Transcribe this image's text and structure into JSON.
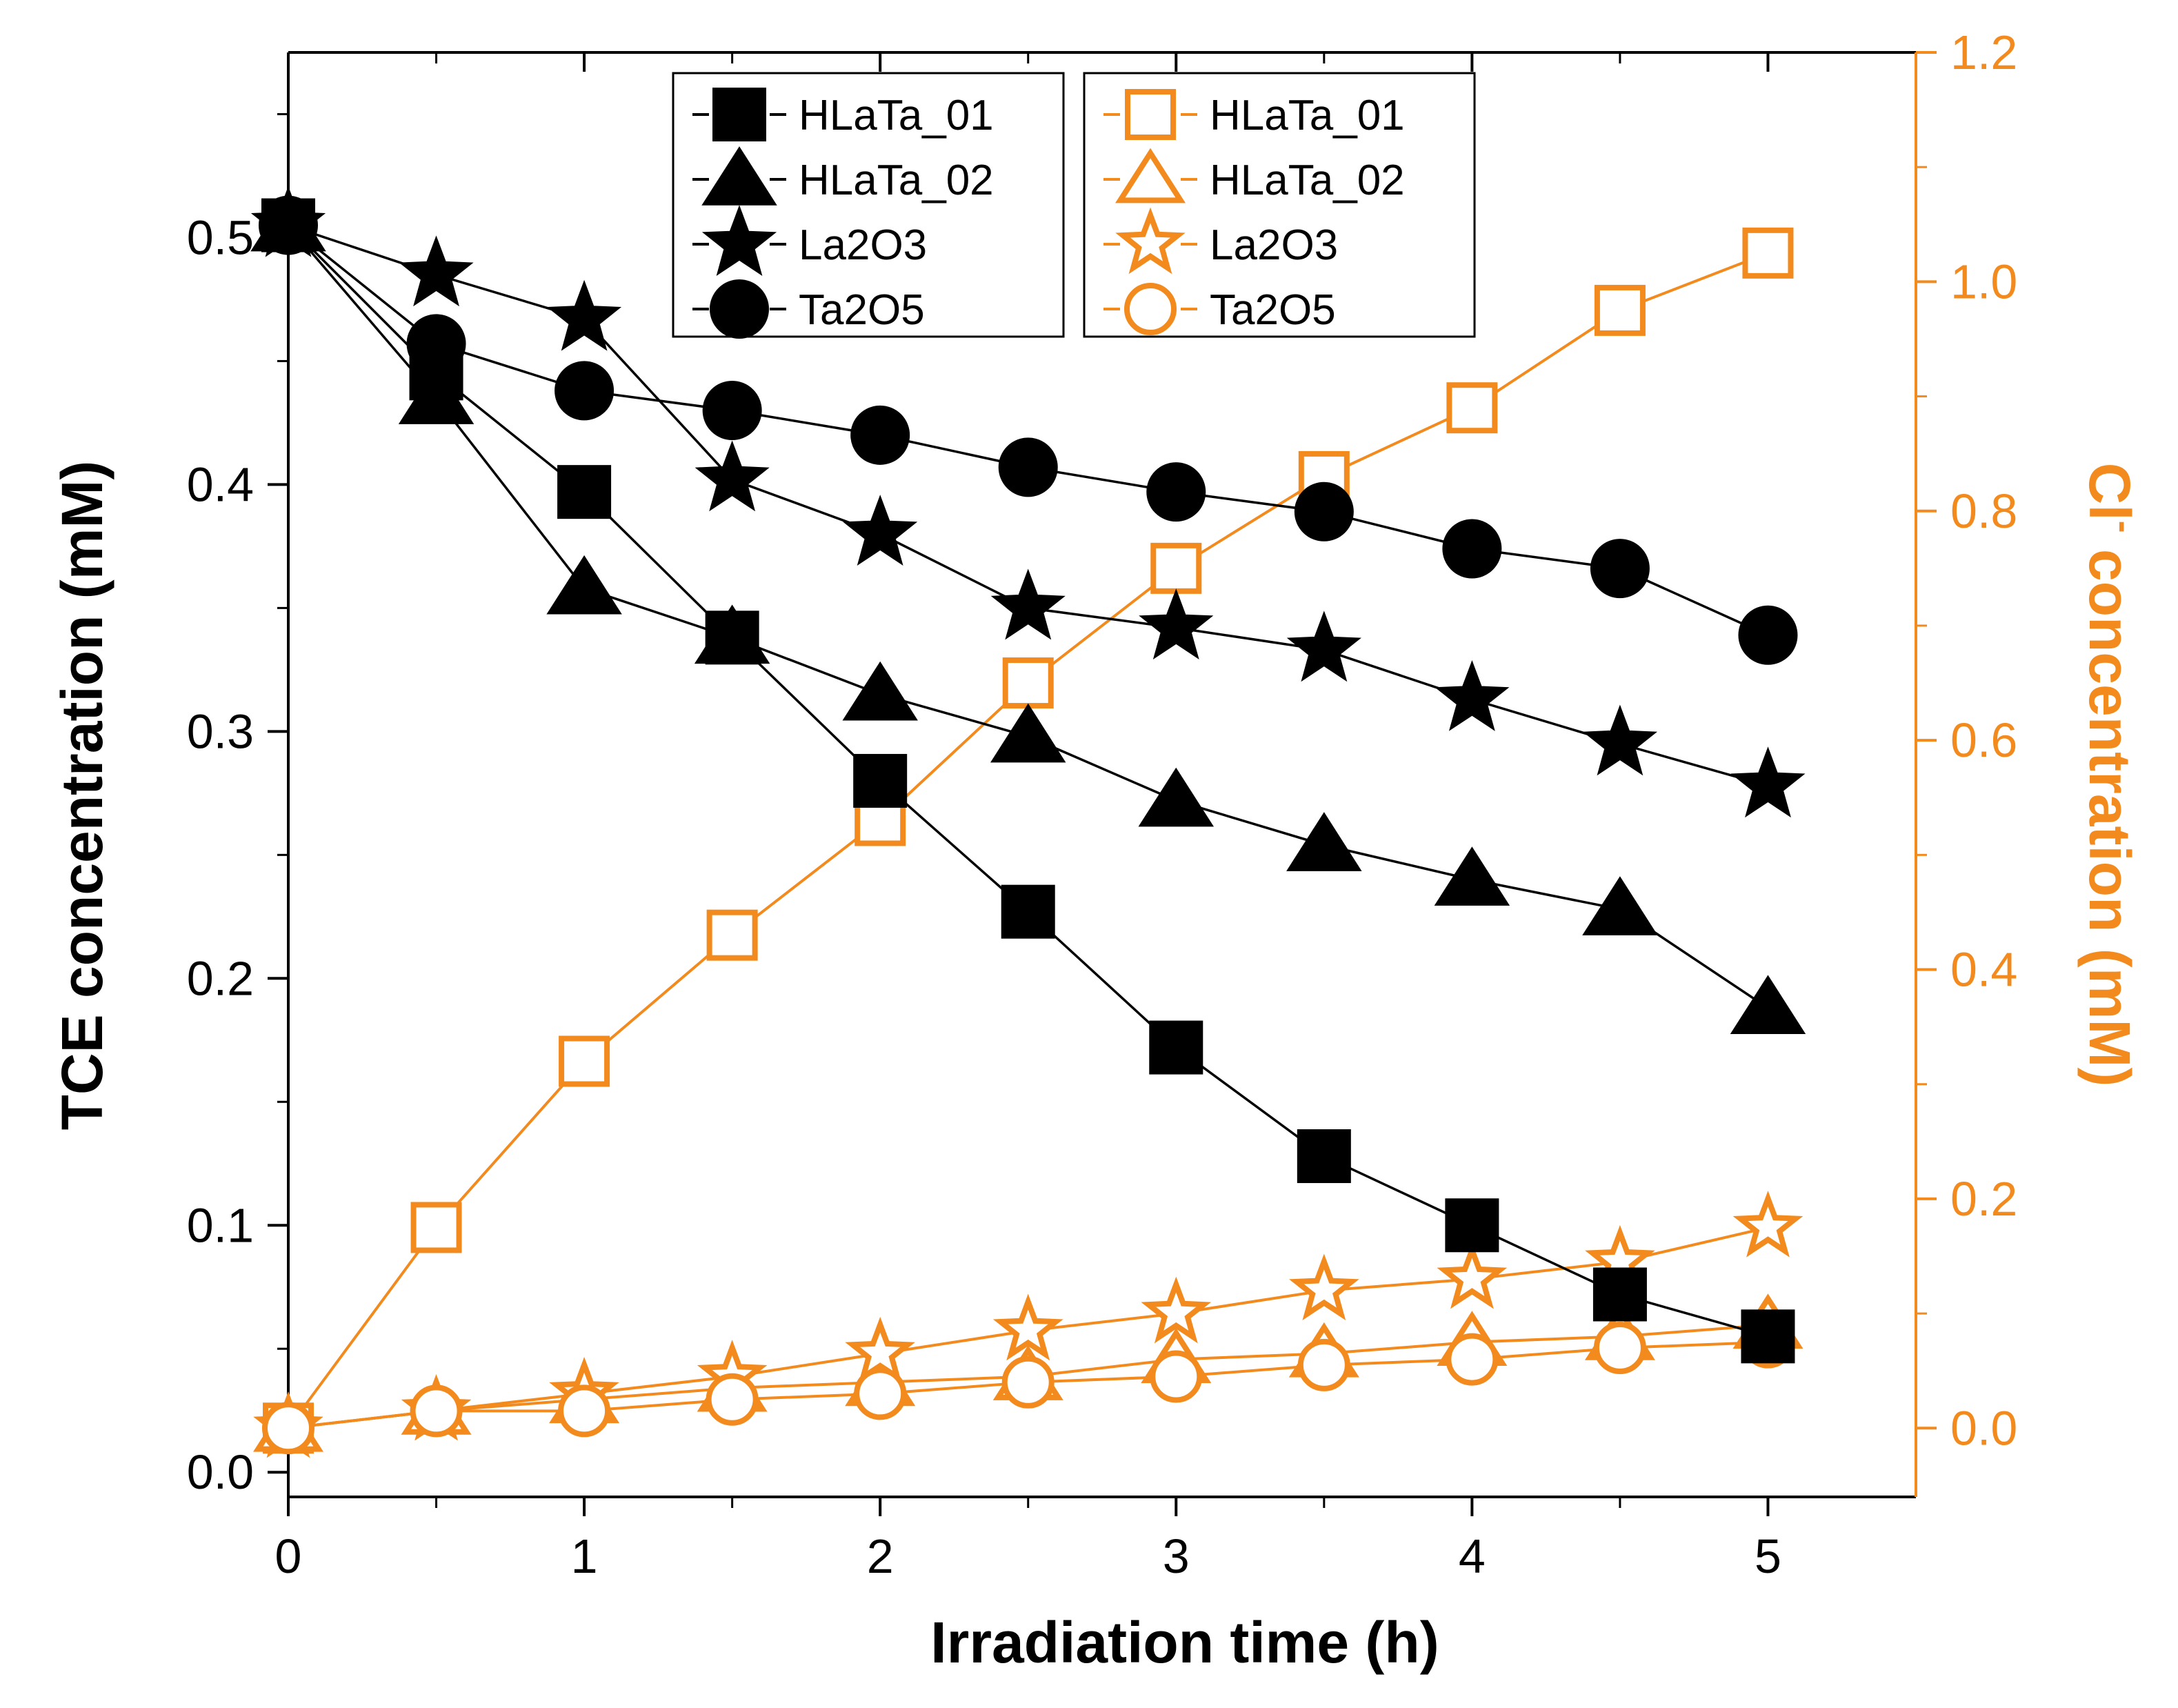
{
  "chart_data": {
    "type": "line",
    "x_axis": {
      "label": "Irradiation time (h)",
      "range": [
        0,
        5.5
      ],
      "ticks": [
        0,
        1,
        2,
        3,
        4,
        5
      ],
      "tick_labels": [
        "0",
        "1",
        "2",
        "3",
        "4",
        "5"
      ]
    },
    "y_axis_left": {
      "label": "TCE concentration (mM)",
      "range": [
        -0.01,
        0.575
      ],
      "ticks": [
        0.0,
        0.1,
        0.2,
        0.3,
        0.4,
        0.5
      ],
      "tick_labels": [
        "0.0",
        "0.1",
        "0.2",
        "0.3",
        "0.4",
        "0.5"
      ]
    },
    "y_axis_right": {
      "label_main": "Cl",
      "label_sup": "-",
      "label_rest": " concentration (mM)",
      "range": [
        -0.06,
        1.2
      ],
      "ticks": [
        0.0,
        0.2,
        0.4,
        0.6,
        0.8,
        1.0,
        1.2
      ],
      "tick_labels": [
        "0.0",
        "0.2",
        "0.4",
        "0.6",
        "0.8",
        "1.0",
        "1.2"
      ]
    },
    "x": [
      0,
      0.5,
      1,
      1.5,
      2,
      2.5,
      3,
      3.5,
      4,
      4.5,
      5
    ],
    "series": [
      {
        "name": "HLaTa_01",
        "axis": "left",
        "marker": "square",
        "filled": true,
        "values": [
          0.505,
          0.445,
          0.397,
          0.338,
          0.28,
          0.227,
          0.172,
          0.128,
          0.1,
          0.072,
          0.055
        ]
      },
      {
        "name": "HLaTa_02",
        "axis": "left",
        "marker": "triangle",
        "filled": true,
        "values": [
          0.505,
          0.435,
          0.358,
          0.338,
          0.315,
          0.298,
          0.272,
          0.254,
          0.24,
          0.228,
          0.188
        ]
      },
      {
        "name": "La2O3",
        "axis": "left",
        "marker": "star",
        "filled": true,
        "values": [
          0.505,
          0.485,
          0.467,
          0.402,
          0.38,
          0.35,
          0.342,
          0.333,
          0.313,
          0.295,
          0.278
        ]
      },
      {
        "name": "Ta2O5",
        "axis": "left",
        "marker": "circle",
        "filled": true,
        "values": [
          0.505,
          0.457,
          0.438,
          0.43,
          0.42,
          0.407,
          0.397,
          0.389,
          0.374,
          0.366,
          0.339
        ]
      },
      {
        "name": "HLaTa_01",
        "axis": "right",
        "marker": "square",
        "filled": false,
        "values": [
          0.0,
          0.175,
          0.32,
          0.43,
          0.53,
          0.65,
          0.75,
          0.83,
          0.89,
          0.975,
          1.025
        ]
      },
      {
        "name": "HLaTa_02",
        "axis": "right",
        "marker": "triangle",
        "filled": false,
        "values": [
          0.0,
          0.015,
          0.025,
          0.035,
          0.04,
          0.045,
          0.06,
          0.065,
          0.075,
          0.08,
          0.09
        ]
      },
      {
        "name": "La2O3",
        "axis": "right",
        "marker": "star",
        "filled": false,
        "values": [
          0.0,
          0.015,
          0.03,
          0.045,
          0.065,
          0.085,
          0.1,
          0.12,
          0.13,
          0.145,
          0.175
        ]
      },
      {
        "name": "Ta2O5",
        "axis": "right",
        "marker": "circle",
        "filled": false,
        "values": [
          0.0,
          0.015,
          0.015,
          0.025,
          0.03,
          0.04,
          0.045,
          0.055,
          0.06,
          0.07,
          0.075
        ]
      }
    ],
    "legend": [
      {
        "placement": "top-center",
        "entries": [
          "HLaTa_01",
          "HLaTa_02",
          "La2O3",
          "Ta2O5"
        ]
      },
      {
        "placement": "top-center-right",
        "entries": [
          "HLaTa_01",
          "HLaTa_02",
          "La2O3",
          "Ta2O5"
        ]
      }
    ],
    "colors": {
      "left": "#000000",
      "right": "#f28a1d"
    },
    "grid": false
  }
}
